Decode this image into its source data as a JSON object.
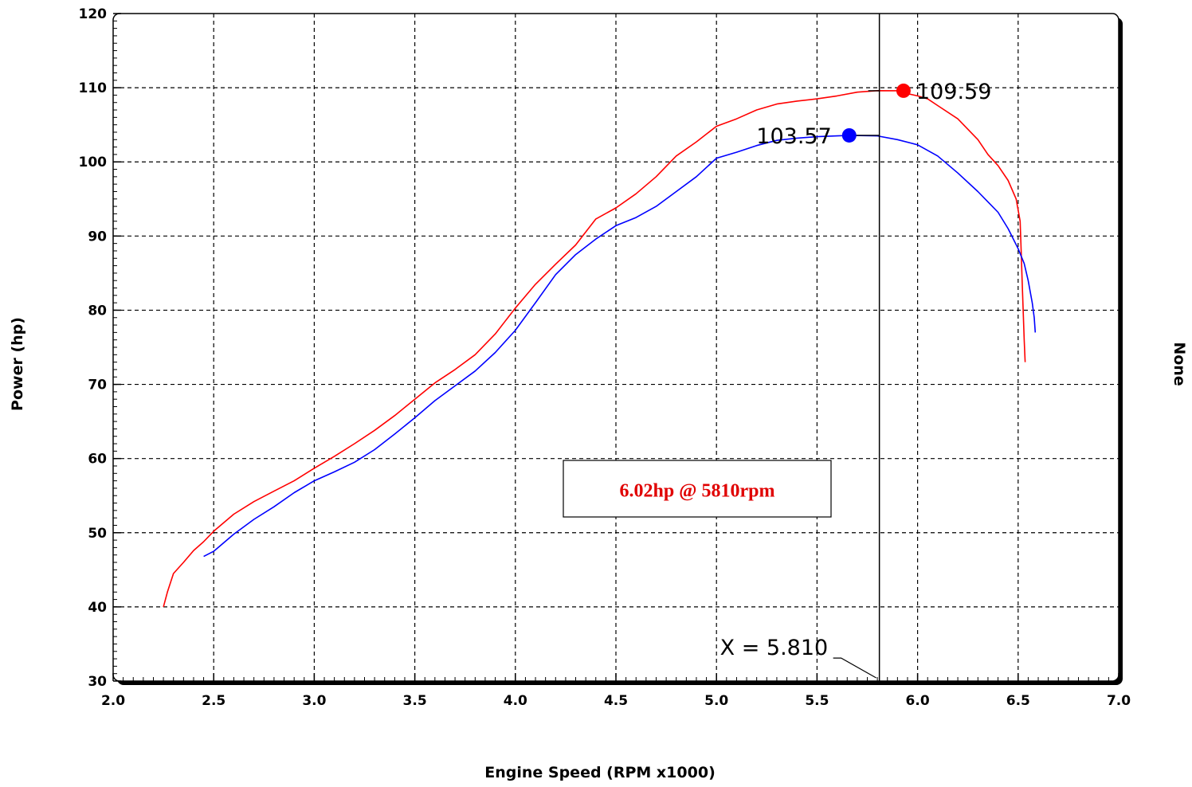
{
  "chart_data": {
    "type": "line",
    "xlabel": "Engine Speed (RPM x1000)",
    "ylabel": "Power (hp)",
    "right_label": "None",
    "xlim": [
      2.0,
      7.0
    ],
    "ylim": [
      30,
      120
    ],
    "x_ticks": [
      "2.0",
      "2.5",
      "3.0",
      "3.5",
      "4.0",
      "4.5",
      "5.0",
      "5.5",
      "6.0",
      "6.5",
      "7.0"
    ],
    "y_ticks": [
      "30",
      "40",
      "50",
      "60",
      "70",
      "80",
      "90",
      "100",
      "110",
      "120"
    ],
    "grid": true,
    "series": [
      {
        "color": "#ff0000",
        "peak": {
          "x": 5.93,
          "y": 109.59,
          "label": "109.59"
        },
        "points": [
          [
            2.25,
            40.0
          ],
          [
            2.27,
            42.0
          ],
          [
            2.3,
            44.5
          ],
          [
            2.35,
            46.0
          ],
          [
            2.4,
            47.6
          ],
          [
            2.45,
            48.8
          ],
          [
            2.5,
            50.2
          ],
          [
            2.6,
            52.5
          ],
          [
            2.7,
            54.2
          ],
          [
            2.8,
            55.6
          ],
          [
            2.9,
            57.0
          ],
          [
            3.0,
            58.7
          ],
          [
            3.1,
            60.3
          ],
          [
            3.2,
            62.0
          ],
          [
            3.3,
            63.8
          ],
          [
            3.4,
            65.8
          ],
          [
            3.5,
            68.0
          ],
          [
            3.6,
            70.2
          ],
          [
            3.7,
            72.0
          ],
          [
            3.8,
            74.0
          ],
          [
            3.9,
            76.8
          ],
          [
            4.0,
            80.3
          ],
          [
            4.1,
            83.5
          ],
          [
            4.2,
            86.2
          ],
          [
            4.3,
            88.8
          ],
          [
            4.4,
            92.3
          ],
          [
            4.5,
            93.8
          ],
          [
            4.6,
            95.7
          ],
          [
            4.7,
            98.0
          ],
          [
            4.8,
            100.8
          ],
          [
            4.9,
            102.7
          ],
          [
            5.0,
            104.8
          ],
          [
            5.1,
            105.8
          ],
          [
            5.2,
            107.0
          ],
          [
            5.3,
            107.8
          ],
          [
            5.4,
            108.2
          ],
          [
            5.5,
            108.5
          ],
          [
            5.6,
            108.9
          ],
          [
            5.7,
            109.4
          ],
          [
            5.8,
            109.6
          ],
          [
            5.9,
            109.59
          ],
          [
            5.95,
            109.2
          ],
          [
            6.0,
            108.9
          ],
          [
            6.05,
            108.5
          ],
          [
            6.1,
            107.6
          ],
          [
            6.2,
            105.8
          ],
          [
            6.3,
            103.0
          ],
          [
            6.35,
            101.0
          ],
          [
            6.4,
            99.5
          ],
          [
            6.45,
            97.5
          ],
          [
            6.49,
            95.0
          ],
          [
            6.51,
            92.0
          ],
          [
            6.515,
            88.0
          ],
          [
            6.52,
            84.0
          ],
          [
            6.525,
            80.0
          ],
          [
            6.53,
            76.0
          ],
          [
            6.535,
            73.0
          ]
        ]
      },
      {
        "color": "#0000ff",
        "peak": {
          "x": 5.66,
          "y": 103.57,
          "label": "103.57"
        },
        "points": [
          [
            2.45,
            46.8
          ],
          [
            2.5,
            47.5
          ],
          [
            2.6,
            49.8
          ],
          [
            2.7,
            51.8
          ],
          [
            2.8,
            53.5
          ],
          [
            2.9,
            55.4
          ],
          [
            3.0,
            57.0
          ],
          [
            3.1,
            58.2
          ],
          [
            3.2,
            59.5
          ],
          [
            3.3,
            61.2
          ],
          [
            3.4,
            63.3
          ],
          [
            3.5,
            65.5
          ],
          [
            3.6,
            67.8
          ],
          [
            3.7,
            69.8
          ],
          [
            3.8,
            71.8
          ],
          [
            3.9,
            74.3
          ],
          [
            4.0,
            77.3
          ],
          [
            4.1,
            81.0
          ],
          [
            4.2,
            84.8
          ],
          [
            4.3,
            87.5
          ],
          [
            4.4,
            89.6
          ],
          [
            4.5,
            91.4
          ],
          [
            4.6,
            92.5
          ],
          [
            4.7,
            94.0
          ],
          [
            4.8,
            96.0
          ],
          [
            4.9,
            98.0
          ],
          [
            5.0,
            100.5
          ],
          [
            5.1,
            101.3
          ],
          [
            5.2,
            102.2
          ],
          [
            5.3,
            102.9
          ],
          [
            5.4,
            103.2
          ],
          [
            5.5,
            103.4
          ],
          [
            5.6,
            103.5
          ],
          [
            5.66,
            103.57
          ],
          [
            5.8,
            103.5
          ],
          [
            5.9,
            103.0
          ],
          [
            6.0,
            102.3
          ],
          [
            6.1,
            100.8
          ],
          [
            6.2,
            98.5
          ],
          [
            6.3,
            96.0
          ],
          [
            6.4,
            93.2
          ],
          [
            6.45,
            91.0
          ],
          [
            6.5,
            88.3
          ],
          [
            6.53,
            86.3
          ],
          [
            6.55,
            84.0
          ],
          [
            6.57,
            81.0
          ],
          [
            6.58,
            79.0
          ],
          [
            6.585,
            77.0
          ]
        ]
      }
    ],
    "cursor": {
      "x": 5.81,
      "label": "X = 5.810"
    },
    "annotation": {
      "text": "6.02hp @ 5810rpm"
    }
  }
}
